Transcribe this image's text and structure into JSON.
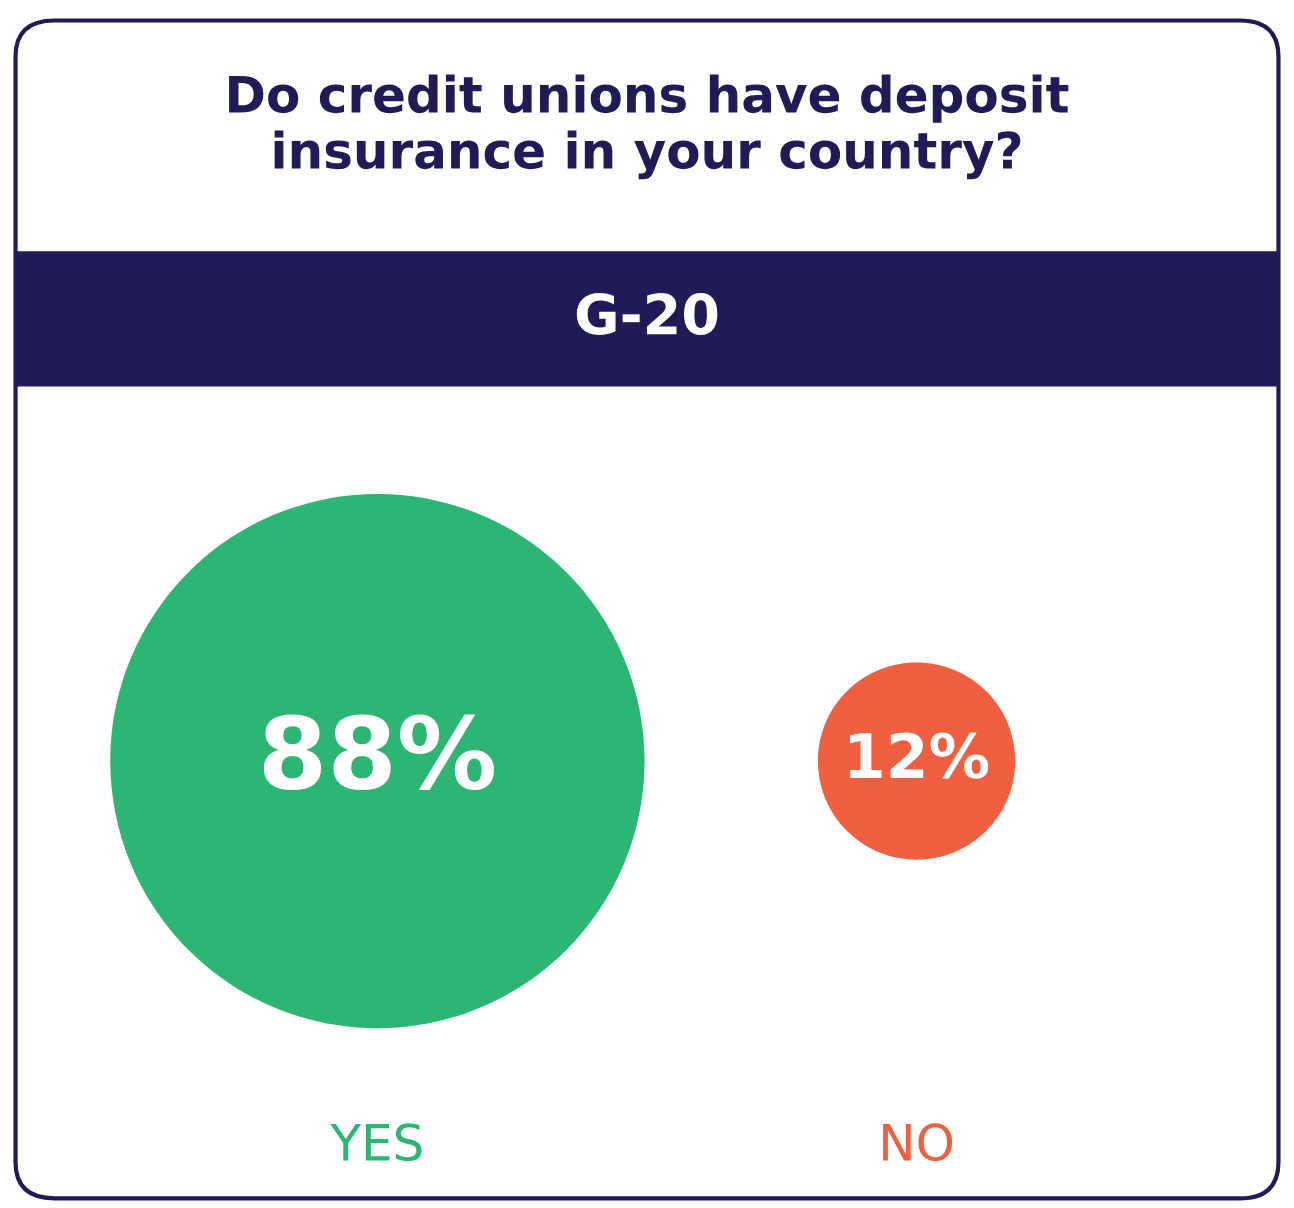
{
  "chart_data": {
    "type": "other",
    "title": "Do credit unions have deposit\ninsurance in your country?",
    "subtitle": "G-20",
    "categories": [
      "YES",
      "NO"
    ],
    "values": [
      88,
      12
    ],
    "colors": [
      "#2db673",
      "#f15f41"
    ],
    "value_labels": [
      "88%",
      "12%"
    ]
  }
}
